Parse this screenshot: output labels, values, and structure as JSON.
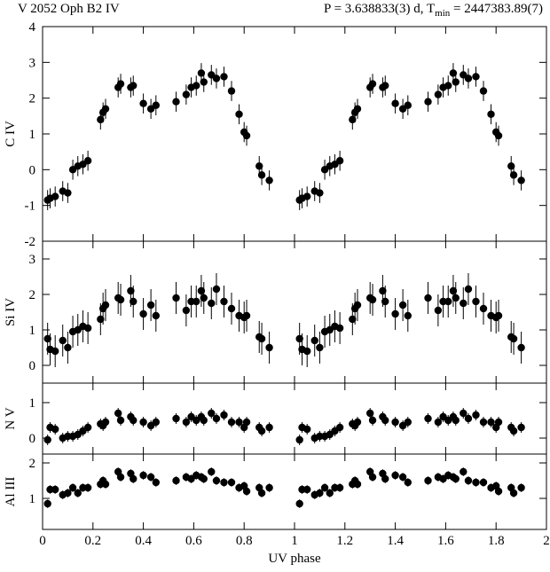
{
  "header": {
    "left": "V 2052 Oph B2 IV",
    "right": [
      "P = 3.638833(3) d, T",
      "min",
      " = 2447383.89(7)"
    ]
  },
  "chart_data": [
    {
      "type": "scatter",
      "ylabel": "C IV",
      "xlim": [
        0,
        2
      ],
      "xticks": [
        0,
        0.2,
        0.4,
        0.6,
        0.8,
        1,
        1.2,
        1.4,
        1.6,
        1.8,
        2
      ],
      "ylim": [
        -2,
        4
      ],
      "yticks": [
        -2,
        -1,
        0,
        1,
        2,
        3,
        4
      ],
      "yerr": 0.28,
      "x": [
        0.02,
        0.03,
        0.05,
        0.08,
        0.1,
        0.12,
        0.14,
        0.16,
        0.18,
        0.23,
        0.24,
        0.25,
        0.3,
        0.31,
        0.35,
        0.36,
        0.4,
        0.43,
        0.45,
        0.53,
        0.57,
        0.59,
        0.61,
        0.63,
        0.64,
        0.67,
        0.69,
        0.72,
        0.75,
        0.78,
        0.8,
        0.81,
        0.86,
        0.87,
        0.9,
        1.02,
        1.03,
        1.05,
        1.08,
        1.1,
        1.12,
        1.14,
        1.16,
        1.18,
        1.23,
        1.24,
        1.25,
        1.3,
        1.31,
        1.35,
        1.36,
        1.4,
        1.43,
        1.45,
        1.53,
        1.57,
        1.59,
        1.61,
        1.63,
        1.64,
        1.67,
        1.69,
        1.72,
        1.75,
        1.78,
        1.8,
        1.81,
        1.86,
        1.87,
        1.9
      ],
      "values": [
        -0.85,
        -0.8,
        -0.75,
        -0.6,
        -0.65,
        0,
        0.1,
        0.15,
        0.25,
        1.4,
        1.6,
        1.7,
        2.3,
        2.4,
        2.3,
        2.35,
        1.85,
        1.7,
        1.8,
        1.9,
        2.1,
        2.3,
        2.35,
        2.7,
        2.45,
        2.65,
        2.55,
        2.6,
        2.2,
        1.55,
        1.05,
        0.95,
        0.1,
        -0.15,
        -0.3,
        -0.85,
        -0.8,
        -0.75,
        -0.6,
        -0.65,
        0,
        0.1,
        0.15,
        0.25,
        1.4,
        1.6,
        1.7,
        2.3,
        2.4,
        2.3,
        2.35,
        1.85,
        1.7,
        1.8,
        1.9,
        2.1,
        2.3,
        2.35,
        2.7,
        2.45,
        2.65,
        2.55,
        2.6,
        2.2,
        1.55,
        1.05,
        0.95,
        0.1,
        -0.15,
        -0.3
      ]
    },
    {
      "type": "scatter",
      "ylabel": "Si IV",
      "xlim": [
        0,
        2
      ],
      "xticks": [
        0,
        0.2,
        0.4,
        0.6,
        0.8,
        1,
        1.2,
        1.4,
        1.6,
        1.8,
        2
      ],
      "ylim": [
        -0.5,
        3.5
      ],
      "yticks": [
        0,
        1,
        2,
        3
      ],
      "yerr": 0.45,
      "x": [
        0.02,
        0.03,
        0.05,
        0.08,
        0.1,
        0.12,
        0.14,
        0.16,
        0.18,
        0.23,
        0.24,
        0.25,
        0.3,
        0.31,
        0.35,
        0.36,
        0.4,
        0.43,
        0.45,
        0.53,
        0.57,
        0.59,
        0.61,
        0.63,
        0.64,
        0.67,
        0.69,
        0.72,
        0.75,
        0.78,
        0.8,
        0.81,
        0.86,
        0.87,
        0.9,
        1.02,
        1.03,
        1.05,
        1.08,
        1.1,
        1.12,
        1.14,
        1.16,
        1.18,
        1.23,
        1.24,
        1.25,
        1.3,
        1.31,
        1.35,
        1.36,
        1.4,
        1.43,
        1.45,
        1.53,
        1.57,
        1.59,
        1.61,
        1.63,
        1.64,
        1.67,
        1.69,
        1.72,
        1.75,
        1.78,
        1.8,
        1.81,
        1.86,
        1.87,
        1.9
      ],
      "values": [
        0.75,
        0.45,
        0.4,
        0.7,
        0.5,
        0.95,
        1,
        1.1,
        1.05,
        1.3,
        1.6,
        1.7,
        1.9,
        1.85,
        2.1,
        1.8,
        1.45,
        1.7,
        1.4,
        1.9,
        1.55,
        1.8,
        1.8,
        2.1,
        1.9,
        1.75,
        2.15,
        1.8,
        1.6,
        1.4,
        1.35,
        1.4,
        0.8,
        0.75,
        0.5,
        0.75,
        0.45,
        0.4,
        0.7,
        0.5,
        0.95,
        1,
        1.1,
        1.05,
        1.3,
        1.6,
        1.7,
        1.9,
        1.85,
        2.1,
        1.8,
        1.45,
        1.7,
        1.4,
        1.9,
        1.55,
        1.8,
        1.8,
        2.1,
        1.9,
        1.75,
        2.15,
        1.8,
        1.6,
        1.4,
        1.35,
        1.4,
        0.8,
        0.75,
        0.5
      ]
    },
    {
      "type": "scatter",
      "ylabel": "N V",
      "xlim": [
        0,
        2
      ],
      "xticks": [
        0,
        0.2,
        0.4,
        0.6,
        0.8,
        1,
        1.2,
        1.4,
        1.6,
        1.8,
        2
      ],
      "ylim": [
        -0.45,
        1.55
      ],
      "yticks": [
        0,
        1
      ],
      "yerr": 0.15,
      "x": [
        0.02,
        0.03,
        0.05,
        0.08,
        0.1,
        0.12,
        0.14,
        0.16,
        0.18,
        0.23,
        0.24,
        0.25,
        0.3,
        0.31,
        0.35,
        0.36,
        0.4,
        0.43,
        0.45,
        0.53,
        0.57,
        0.59,
        0.61,
        0.63,
        0.64,
        0.67,
        0.69,
        0.72,
        0.75,
        0.78,
        0.8,
        0.81,
        0.86,
        0.87,
        0.9,
        1.02,
        1.03,
        1.05,
        1.08,
        1.1,
        1.12,
        1.14,
        1.16,
        1.18,
        1.23,
        1.24,
        1.25,
        1.3,
        1.31,
        1.35,
        1.36,
        1.4,
        1.43,
        1.45,
        1.53,
        1.57,
        1.59,
        1.61,
        1.63,
        1.64,
        1.67,
        1.69,
        1.72,
        1.75,
        1.78,
        1.8,
        1.81,
        1.86,
        1.87,
        1.9
      ],
      "values": [
        -0.05,
        0.3,
        0.25,
        0,
        0.05,
        0.05,
        0.1,
        0.2,
        0.3,
        0.4,
        0.35,
        0.45,
        0.7,
        0.5,
        0.6,
        0.5,
        0.45,
        0.35,
        0.45,
        0.55,
        0.45,
        0.6,
        0.5,
        0.6,
        0.5,
        0.7,
        0.55,
        0.65,
        0.45,
        0.45,
        0.3,
        0.45,
        0.3,
        0.2,
        0.3,
        -0.05,
        0.3,
        0.25,
        0,
        0.05,
        0.05,
        0.1,
        0.2,
        0.3,
        0.4,
        0.35,
        0.45,
        0.7,
        0.5,
        0.6,
        0.5,
        0.45,
        0.35,
        0.45,
        0.55,
        0.45,
        0.6,
        0.5,
        0.6,
        0.5,
        0.7,
        0.55,
        0.65,
        0.45,
        0.45,
        0.3,
        0.45,
        0.3,
        0.2,
        0.3
      ]
    },
    {
      "type": "scatter",
      "ylabel": "Al III",
      "xlabel": "UV phase",
      "show_xticklabels": true,
      "xlim": [
        0,
        2
      ],
      "xticks": [
        0,
        0.2,
        0.4,
        0.6,
        0.8,
        1,
        1.2,
        1.4,
        1.6,
        1.8,
        2
      ],
      "ylim": [
        0.125,
        2.25
      ],
      "yticks": [
        1,
        2
      ],
      "yerr": 0.12,
      "x": [
        0.02,
        0.03,
        0.05,
        0.08,
        0.1,
        0.12,
        0.14,
        0.16,
        0.18,
        0.23,
        0.24,
        0.25,
        0.3,
        0.31,
        0.35,
        0.36,
        0.4,
        0.43,
        0.45,
        0.53,
        0.57,
        0.59,
        0.61,
        0.63,
        0.64,
        0.67,
        0.69,
        0.72,
        0.75,
        0.78,
        0.8,
        0.81,
        0.86,
        0.87,
        0.9,
        1.02,
        1.03,
        1.05,
        1.08,
        1.1,
        1.12,
        1.14,
        1.16,
        1.18,
        1.23,
        1.24,
        1.25,
        1.3,
        1.31,
        1.35,
        1.36,
        1.4,
        1.43,
        1.45,
        1.53,
        1.57,
        1.59,
        1.61,
        1.63,
        1.64,
        1.67,
        1.69,
        1.72,
        1.75,
        1.78,
        1.8,
        1.81,
        1.86,
        1.87,
        1.9
      ],
      "values": [
        0.85,
        1.25,
        1.25,
        1.1,
        1.15,
        1.3,
        1.15,
        1.3,
        1.3,
        1.4,
        1.5,
        1.4,
        1.75,
        1.6,
        1.7,
        1.55,
        1.65,
        1.6,
        1.45,
        1.5,
        1.6,
        1.55,
        1.65,
        1.6,
        1.55,
        1.75,
        1.5,
        1.45,
        1.45,
        1.3,
        1.35,
        1.2,
        1.3,
        1.15,
        1.3,
        0.85,
        1.25,
        1.25,
        1.1,
        1.15,
        1.3,
        1.15,
        1.3,
        1.3,
        1.4,
        1.5,
        1.4,
        1.75,
        1.6,
        1.7,
        1.55,
        1.65,
        1.6,
        1.45,
        1.5,
        1.6,
        1.55,
        1.65,
        1.6,
        1.55,
        1.75,
        1.5,
        1.45,
        1.45,
        1.3,
        1.35,
        1.2,
        1.3,
        1.15,
        1.3
      ]
    }
  ]
}
